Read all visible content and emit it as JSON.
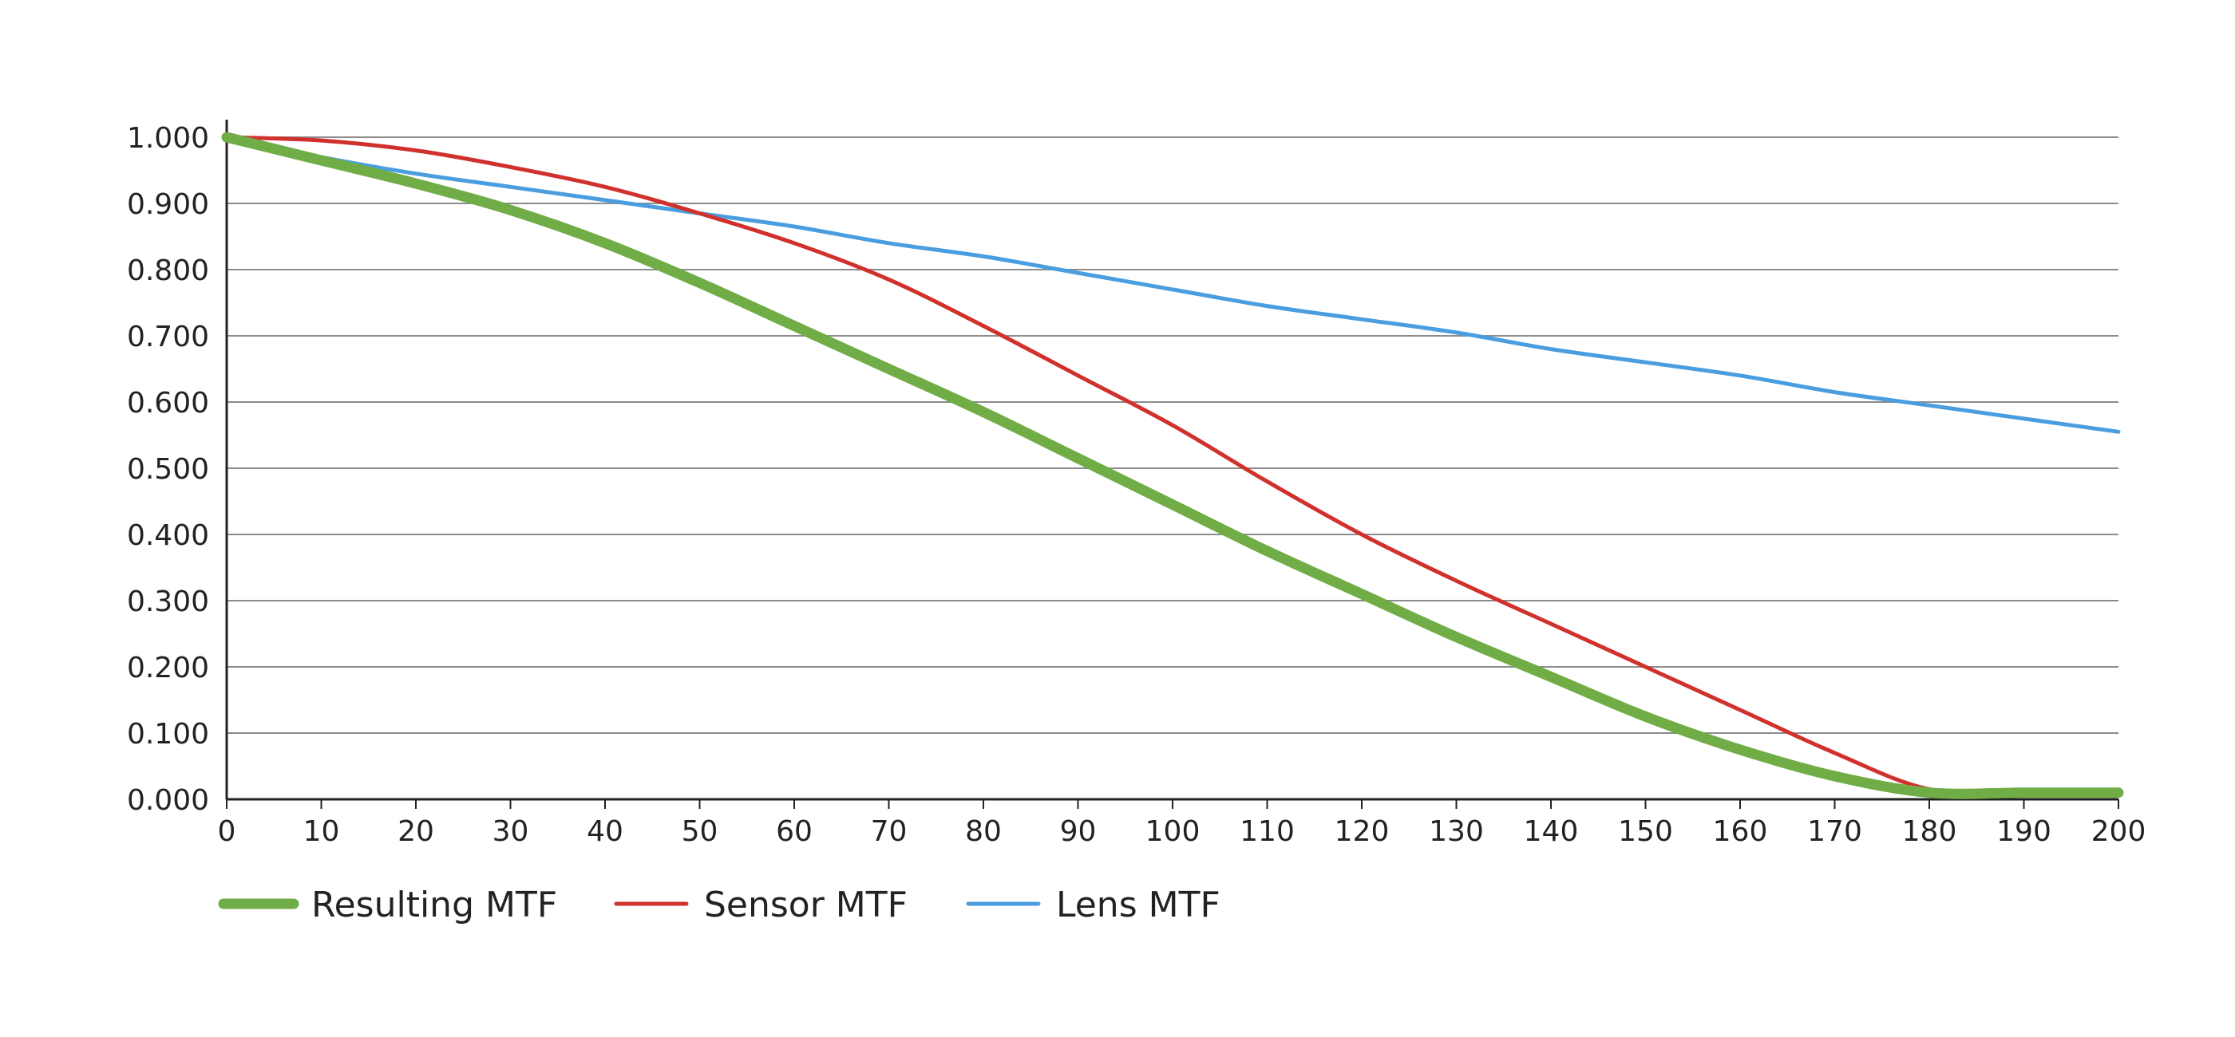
{
  "chart_data": {
    "type": "line",
    "title": "",
    "xlabel": "",
    "ylabel": "",
    "xlim": [
      0,
      200
    ],
    "ylim": [
      0,
      1
    ],
    "x_ticks": [
      0,
      10,
      20,
      30,
      40,
      50,
      60,
      70,
      80,
      90,
      100,
      110,
      120,
      130,
      140,
      150,
      160,
      170,
      180,
      190,
      200
    ],
    "x_tick_labels": [
      "0",
      "10",
      "20",
      "30",
      "40",
      "50",
      "60",
      "70",
      "80",
      "90",
      "100",
      "110",
      "120",
      "130",
      "140",
      "150",
      "160",
      "170",
      "180",
      "190",
      "200"
    ],
    "y_ticks": [
      0,
      0.1,
      0.2,
      0.3,
      0.4,
      0.5,
      0.6,
      0.7,
      0.8,
      0.9,
      1.0
    ],
    "y_tick_labels": [
      "0.000",
      "0.100",
      "0.200",
      "0.300",
      "0.400",
      "0.500",
      "0.600",
      "0.700",
      "0.800",
      "0.900",
      "1.000"
    ],
    "grid": "horizontal",
    "legend_position": "bottom-left",
    "x": [
      0,
      10,
      20,
      30,
      40,
      50,
      60,
      70,
      80,
      90,
      100,
      110,
      120,
      130,
      140,
      150,
      160,
      170,
      180,
      190,
      200
    ],
    "series": [
      {
        "name": "Resulting MTF",
        "color": "#70ad47",
        "values": [
          1.0,
          0.965,
          0.93,
          0.89,
          0.84,
          0.78,
          0.715,
          0.65,
          0.585,
          0.515,
          0.445,
          0.375,
          0.31,
          0.245,
          0.185,
          0.125,
          0.075,
          0.035,
          0.01,
          0.01,
          0.01
        ]
      },
      {
        "name": "Sensor MTF",
        "color": "#d0312d",
        "values": [
          1.0,
          0.995,
          0.98,
          0.955,
          0.925,
          0.885,
          0.84,
          0.785,
          0.715,
          0.64,
          0.565,
          0.48,
          0.4,
          0.33,
          0.265,
          0.2,
          0.135,
          0.07,
          0.015,
          0.01,
          0.01
        ]
      },
      {
        "name": "Lens MTF",
        "color": "#4a9ee0",
        "values": [
          1.0,
          0.97,
          0.945,
          0.925,
          0.905,
          0.885,
          0.865,
          0.84,
          0.82,
          0.795,
          0.77,
          0.745,
          0.725,
          0.705,
          0.68,
          0.66,
          0.64,
          0.615,
          0.595,
          0.575,
          0.555
        ]
      }
    ]
  }
}
